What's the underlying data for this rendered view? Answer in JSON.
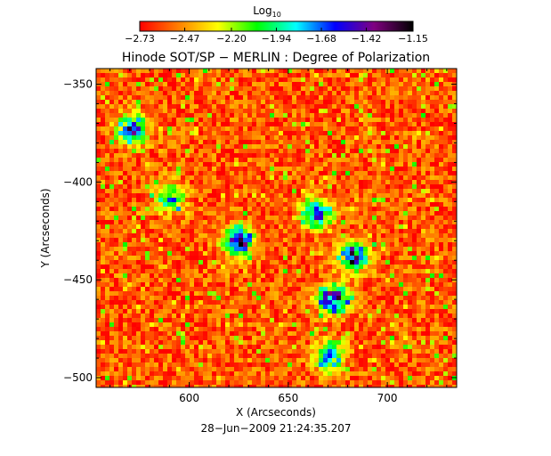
{
  "chart_data": {
    "type": "heatmap",
    "title": "Hinode SOT/SP − MERLIN : Degree of Polarization",
    "xlabel": "X (Arcseconds)",
    "ylabel": "Y (Arcseconds)",
    "xlim": [
      553,
      735
    ],
    "ylim": [
      -505,
      -342
    ],
    "x_ticks": [
      600,
      650,
      700
    ],
    "x_tick_labels": [
      "600",
      "650",
      "700"
    ],
    "y_ticks": [
      -350,
      -400,
      -450,
      -500
    ],
    "y_tick_labels": [
      "−350",
      "−400",
      "−450",
      "−500"
    ],
    "grid": false,
    "value_scale": "log10",
    "colorbar": {
      "label_base": "Log",
      "label_sub": "10",
      "range": [
        -2.73,
        -1.15
      ],
      "tick_values": [
        -2.73,
        -2.47,
        -2.2,
        -1.94,
        -1.68,
        -1.42,
        -1.15
      ],
      "tick_labels": [
        "−2.73",
        "−2.47",
        "−2.20",
        "−1.94",
        "−1.68",
        "−1.42",
        "−1.15"
      ],
      "colormap": [
        "#ff0000",
        "#ff8000",
        "#ffff00",
        "#00ff00",
        "#00ffff",
        "#0000ff",
        "#800080",
        "#000000"
      ]
    },
    "background_value": -2.58,
    "high_polarization_regions": [
      {
        "x": 625,
        "y": -430,
        "peak": -1.35
      },
      {
        "x": 673,
        "y": -460,
        "peak": -1.3
      },
      {
        "x": 664,
        "y": -416,
        "peak": -1.55
      },
      {
        "x": 683,
        "y": -438,
        "peak": -1.5
      },
      {
        "x": 671,
        "y": -489,
        "peak": -1.65
      },
      {
        "x": 571,
        "y": -373,
        "peak": -1.45
      },
      {
        "x": 590,
        "y": -408,
        "peak": -1.85
      }
    ],
    "timestamp": "28−Jun−2009 21:24:35.207"
  }
}
